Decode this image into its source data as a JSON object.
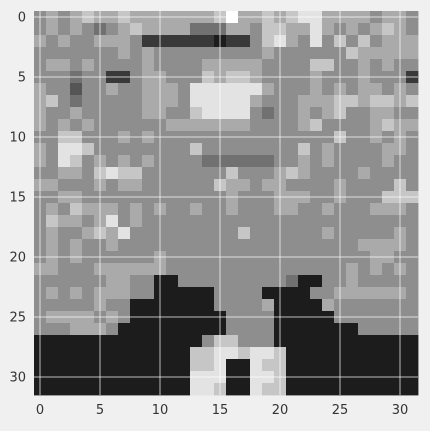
{
  "chart_data": {
    "type": "heatmap",
    "title": "",
    "xlabel": "",
    "ylabel": "",
    "colormap": "gray",
    "xlim": [
      -0.5,
      31.5
    ],
    "ylim": [
      31.5,
      -0.5
    ],
    "grid": true,
    "x_ticks": [
      0,
      5,
      10,
      15,
      20,
      25,
      30
    ],
    "y_ticks": [
      0,
      5,
      10,
      15,
      20,
      25,
      30
    ],
    "x_tick_labels": [
      "0",
      "5",
      "10",
      "15",
      "20",
      "25",
      "30"
    ],
    "y_tick_labels": [
      "0",
      "5",
      "10",
      "15",
      "20",
      "25",
      "30"
    ],
    "value_range": [
      0,
      9
    ],
    "rows": [
      "56567667666666679667678866665665",
      "56565456766664446657766865656765",
      "65655666522222212257865857575666",
      "55555556565555555556555555766666",
      "56656555565555666665555775565655",
      "55545522566555767765555655565552",
      "65535565566658888886555656566565",
      "67545555566658888865556667767767",
      "65565555566557888854556567556655",
      "65656555555666666655556755556766",
      "55775556565555555555555557556565",
      "65887555555557555555557565555665",
      "65875656565555444444556565555655",
      "55665787755555557555676555565555",
      "66555656655555576656655556555575",
      "55665555555555556555666556555777",
      "56576665656556556555665565556665",
      "57665685655555555555555555555555",
      "56556768555555555755555565555565",
      "56565565555555555555555555566665",
      "56565555556555555555555555556655",
      "66555666666555555555555555656565",
      "55555566551155555555541155655555",
      "56565666551111155551111556666665",
      "55555655111111155556111165555555",
      "56666565111111115555111115555555",
      "55566651111111115555111111155555",
      "11111111111111577555111111111111",
      "11111111111117788788711111111111",
      "11111111111117781187711111111111",
      "11111111111118881188711111111111",
      "11111111111118871187711111111111"
    ]
  }
}
